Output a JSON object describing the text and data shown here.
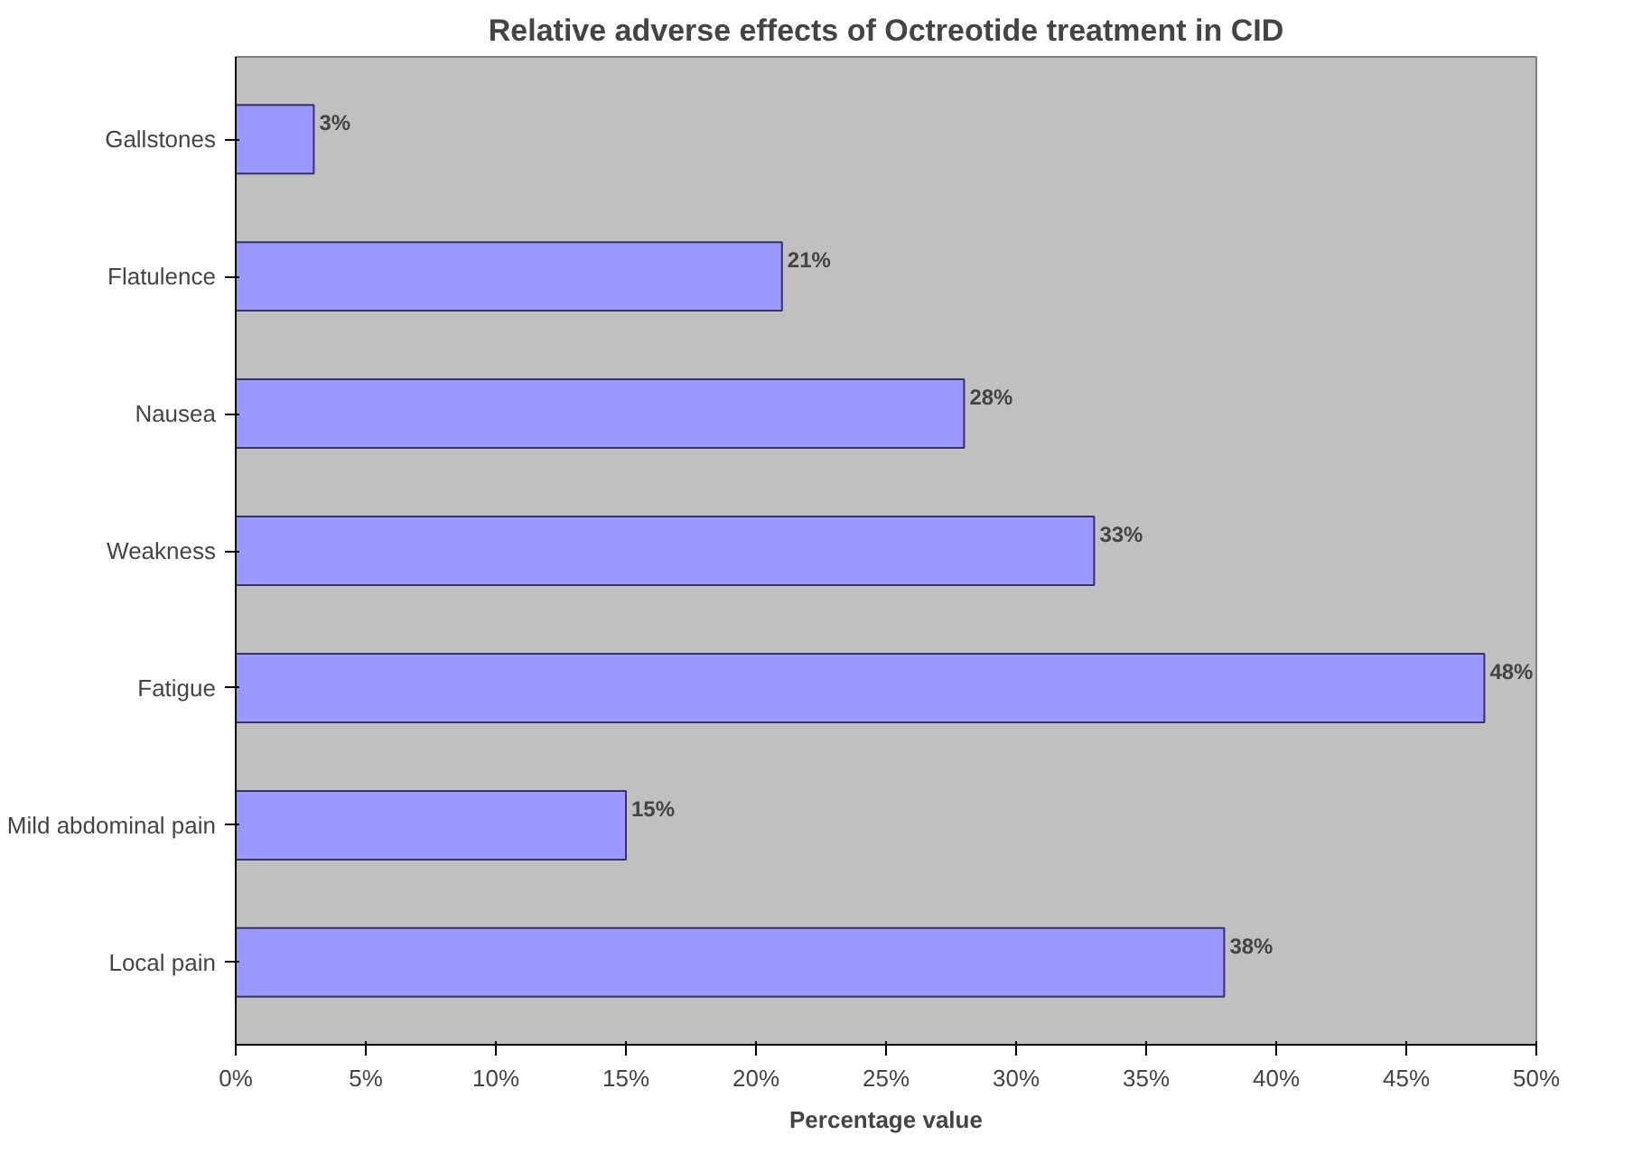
{
  "chart_data": {
    "type": "bar",
    "orientation": "horizontal",
    "title": "Relative adverse effects of Octreotide treatment in CID",
    "xlabel": "Percentage value",
    "categories": [
      "Gallstones",
      "Flatulence",
      "Nausea",
      "Weakness",
      "Fatigue",
      "Mild abdominal pain",
      "Local pain"
    ],
    "values": [
      3,
      21,
      28,
      33,
      48,
      15,
      38
    ],
    "color": "#9999ff",
    "value_labels": [
      "3%",
      "21%",
      "28%",
      "33%",
      "48%",
      "15%",
      "38%"
    ],
    "xlim": [
      0,
      50
    ],
    "xticks": [
      {
        "value": 0,
        "label": "0%"
      },
      {
        "value": 5,
        "label": "5%"
      },
      {
        "value": 10,
        "label": "10%"
      },
      {
        "value": 15,
        "label": "15%"
      },
      {
        "value": 20,
        "label": "20%"
      },
      {
        "value": 25,
        "label": "25%"
      },
      {
        "value": 30,
        "label": "30%"
      },
      {
        "value": 35,
        "label": "35%"
      },
      {
        "value": 40,
        "label": "40%"
      },
      {
        "value": 45,
        "label": "45%"
      },
      {
        "value": 50,
        "label": "50%"
      }
    ],
    "grid": false
  }
}
